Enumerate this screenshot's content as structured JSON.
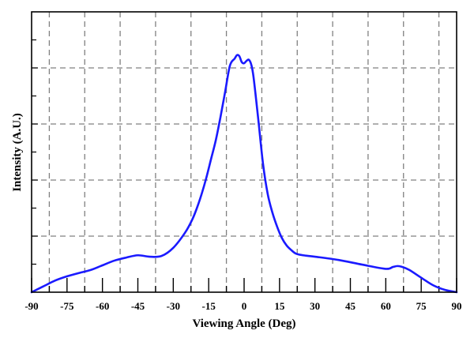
{
  "chart_data": {
    "type": "line",
    "title": "",
    "xlabel": "Viewing Angle (Deg)",
    "ylabel": "Intensity (A.U.)",
    "xlim": [
      -90,
      90
    ],
    "ylim": [
      0,
      1.2
    ],
    "x_ticks": [
      -90,
      -75,
      -60,
      -45,
      -30,
      -15,
      0,
      15,
      30,
      45,
      60,
      75,
      90
    ],
    "x_tick_labels": [
      "-90",
      "-75",
      "-60",
      "-45",
      "-30",
      "-15",
      "0",
      "15",
      "30",
      "45",
      "60",
      "75",
      "90"
    ],
    "y_tick_labels": [],
    "grid": true,
    "grid_style": "dashed",
    "legend": "none",
    "series": [
      {
        "color": "#1a1aff",
        "x": [
          -90,
          -85,
          -80,
          -75,
          -70,
          -65,
          -60,
          -55,
          -50,
          -45,
          -40,
          -35,
          -30,
          -25,
          -22,
          -20,
          -18,
          -16,
          -14,
          -12,
          -10,
          -8,
          -6,
          -4,
          -3,
          -2,
          -1,
          0,
          1,
          2,
          3,
          4,
          6,
          8,
          10,
          12,
          14,
          16,
          18,
          20,
          22,
          25,
          30,
          40,
          50,
          60,
          63,
          65,
          67,
          70,
          75,
          80,
          85,
          90
        ],
        "y": [
          0.0,
          0.025,
          0.05,
          0.068,
          0.082,
          0.095,
          0.115,
          0.135,
          0.148,
          0.158,
          0.152,
          0.155,
          0.19,
          0.255,
          0.31,
          0.36,
          0.42,
          0.49,
          0.57,
          0.65,
          0.75,
          0.86,
          0.97,
          1.0,
          1.015,
          1.01,
          0.985,
          0.98,
          0.99,
          0.995,
          0.975,
          0.92,
          0.74,
          0.55,
          0.42,
          0.34,
          0.28,
          0.232,
          0.2,
          0.18,
          0.165,
          0.158,
          0.152,
          0.138,
          0.118,
          0.1,
          0.108,
          0.112,
          0.108,
          0.095,
          0.062,
          0.03,
          0.01,
          0.0
        ]
      }
    ]
  }
}
